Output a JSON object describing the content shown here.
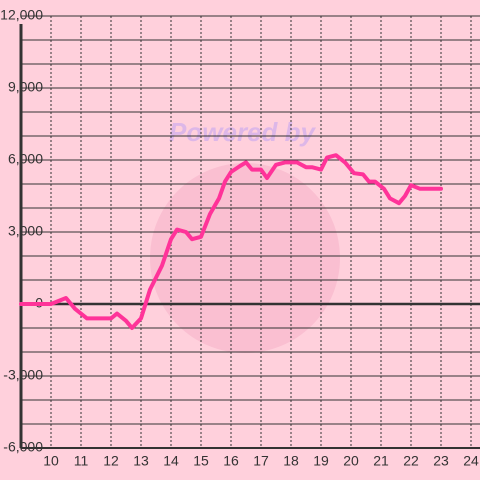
{
  "chart_data": {
    "type": "line",
    "annotation": "Powered by",
    "x": [
      9.0,
      10.0,
      10.5,
      10.8,
      11.2,
      12.0,
      12.2,
      12.5,
      12.7,
      13.0,
      13.3,
      13.7,
      14.0,
      14.2,
      14.5,
      14.7,
      15.0,
      15.3,
      15.6,
      15.8,
      16.0,
      16.3,
      16.5,
      16.7,
      17.0,
      17.2,
      17.5,
      17.8,
      18.2,
      18.5,
      18.7,
      19.0,
      19.2,
      19.5,
      19.8,
      20.1,
      20.4,
      20.6,
      20.8,
      21.1,
      21.3,
      21.6,
      21.8,
      22.0,
      22.3,
      23.0
    ],
    "series": [
      {
        "color": "#ff3399",
        "values": [
          0,
          0,
          250,
          -200,
          -600,
          -600,
          -400,
          -700,
          -1000,
          -600,
          600,
          1600,
          2700,
          3100,
          3000,
          2700,
          2800,
          3750,
          4400,
          5100,
          5500,
          5750,
          5900,
          5600,
          5600,
          5250,
          5800,
          5900,
          5900,
          5700,
          5700,
          5600,
          6100,
          6200,
          5900,
          5450,
          5400,
          5100,
          5100,
          4800,
          4400,
          4200,
          4500,
          4950,
          4800,
          4800
        ]
      }
    ],
    "xlim": [
      9,
      24.3
    ],
    "xticks": [
      10,
      11,
      12,
      13,
      14,
      15,
      16,
      17,
      18,
      19,
      20,
      21,
      22,
      23,
      24
    ],
    "ylim": [
      -6000,
      12000
    ],
    "yticks": [
      {
        "value": -6000,
        "label": "-6,000"
      },
      {
        "value": -3000,
        "label": "-3,000"
      },
      0,
      {
        "value": 3000,
        "label": "3,000"
      },
      {
        "value": 6000,
        "label": "6,000"
      },
      {
        "value": 9000,
        "label": "9,000"
      },
      {
        "value": 12000,
        "label": "12,000"
      }
    ],
    "y_minor_ticks": [
      -5000,
      -4000,
      -2000,
      -1000,
      1000,
      2000,
      4000,
      5000,
      7000,
      8000,
      10000,
      11000
    ],
    "grid": true
  }
}
